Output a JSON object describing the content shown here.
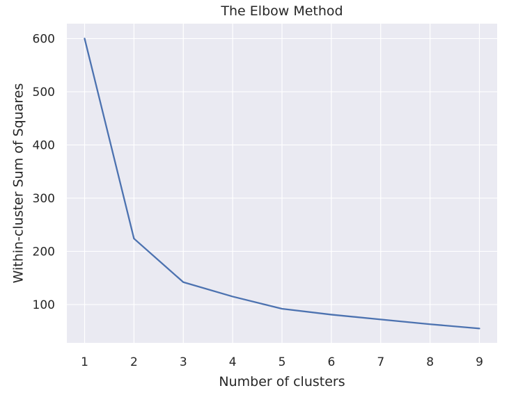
{
  "chart_data": {
    "type": "line",
    "title": "The Elbow Method",
    "xlabel": "Number of clusters",
    "ylabel": "Within-cluster Sum of Squares",
    "x": [
      1,
      2,
      3,
      4,
      5,
      6,
      7,
      8,
      9
    ],
    "series": [
      {
        "values": [
          600,
          224,
          142,
          115,
          92,
          81,
          72,
          63,
          55
        ]
      }
    ],
    "xlim": [
      0.64,
      9.36
    ],
    "ylim": [
      28,
      628
    ],
    "xticks": [
      1,
      2,
      3,
      4,
      5,
      6,
      7,
      8,
      9
    ],
    "xtick_labels": [
      "1",
      "2",
      "3",
      "4",
      "5",
      "6",
      "7",
      "8",
      "9"
    ],
    "yticks": [
      100,
      200,
      300,
      400,
      500,
      600
    ],
    "ytick_labels": [
      "100",
      "200",
      "300",
      "400",
      "500",
      "600"
    ],
    "grid": true,
    "legend": "none",
    "colors": {
      "background": "#eaeaf2",
      "grid": "#ffffff",
      "line": "#4c72b0",
      "text": "#262626"
    }
  }
}
